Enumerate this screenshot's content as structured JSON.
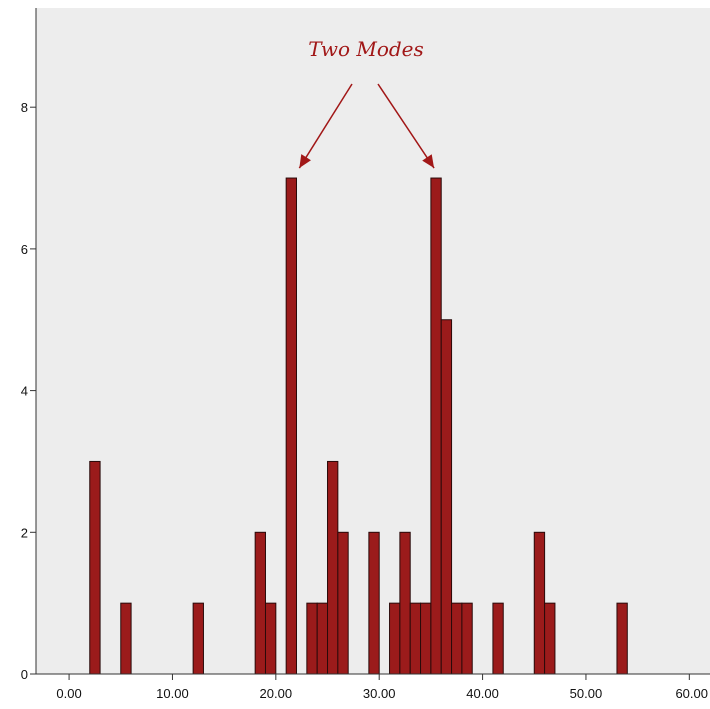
{
  "chart_data": {
    "type": "bar",
    "title": "",
    "xlabel": "",
    "ylabel": "",
    "xlim": [
      -3.2,
      62.0
    ],
    "ylim": [
      0,
      9.4
    ],
    "x_ticks": [
      0,
      10,
      20,
      30,
      40,
      50,
      60
    ],
    "x_tick_labels": [
      "0.00",
      "10.00",
      "20.00",
      "30.00",
      "40.00",
      "50.00",
      "60.00"
    ],
    "y_ticks": [
      0,
      2,
      4,
      6,
      8
    ],
    "y_tick_labels": [
      "0",
      "2",
      "4",
      "6",
      "8"
    ],
    "grid": false,
    "bin_width": 1.0,
    "bars": [
      {
        "x": 2.5,
        "value": 3
      },
      {
        "x": 5.5,
        "value": 1
      },
      {
        "x": 12.5,
        "value": 1
      },
      {
        "x": 18.5,
        "value": 2
      },
      {
        "x": 19.5,
        "value": 1
      },
      {
        "x": 21.5,
        "value": 7
      },
      {
        "x": 23.5,
        "value": 1
      },
      {
        "x": 24.5,
        "value": 1
      },
      {
        "x": 25.5,
        "value": 3
      },
      {
        "x": 26.5,
        "value": 2
      },
      {
        "x": 29.5,
        "value": 2
      },
      {
        "x": 31.5,
        "value": 1
      },
      {
        "x": 32.5,
        "value": 2
      },
      {
        "x": 33.5,
        "value": 1
      },
      {
        "x": 34.5,
        "value": 1
      },
      {
        "x": 35.5,
        "value": 7
      },
      {
        "x": 36.5,
        "value": 5
      },
      {
        "x": 37.5,
        "value": 1
      },
      {
        "x": 38.5,
        "value": 1
      },
      {
        "x": 41.5,
        "value": 1
      },
      {
        "x": 45.5,
        "value": 2
      },
      {
        "x": 46.5,
        "value": 1
      },
      {
        "x": 53.5,
        "value": 1
      }
    ],
    "annotation": {
      "text": "Two Modes",
      "points_to": [
        21.5,
        35.5
      ]
    },
    "colors": {
      "bar_fill": "#9b1b1b",
      "bar_stroke": "#2a0a0a",
      "plot_background": "#ededed",
      "axis": "#333333",
      "annotation": "#a11717"
    }
  }
}
